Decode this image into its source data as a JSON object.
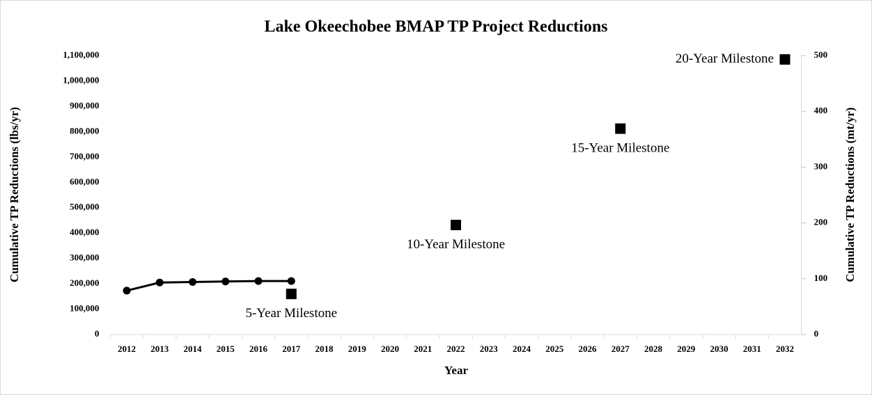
{
  "chart_data": {
    "type": "line",
    "title": "Lake Okeechobee BMAP TP Project Reductions",
    "x_label": "Year",
    "y_label": "Cumulative TP Reductions (lbs/yr)",
    "y2_label": "Cumulative TP Reductions (mt/yr)",
    "categories": [
      "2012",
      "2013",
      "2014",
      "2015",
      "2016",
      "2017",
      "2018",
      "2019",
      "2020",
      "2021",
      "2022",
      "2023",
      "2024",
      "2025",
      "2026",
      "2027",
      "2028",
      "2029",
      "2030",
      "2031",
      "2032"
    ],
    "series": [
      {
        "type": "line",
        "color": "#000000",
        "values": [
          173000,
          205000,
          207000,
          209000,
          211000,
          211000,
          null,
          null,
          null,
          null,
          null,
          null,
          null,
          null,
          null,
          null,
          null,
          null,
          null,
          null,
          null
        ]
      },
      {
        "type": "marker",
        "color": "#000000",
        "values": [
          null,
          null,
          null,
          null,
          null,
          160000,
          null,
          null,
          null,
          null,
          432000,
          null,
          null,
          null,
          null,
          812000,
          null,
          null,
          null,
          null,
          1085000
        ]
      }
    ],
    "annotations": [
      {
        "text": "5-Year Milestone",
        "category": "2017"
      },
      {
        "text": "10-Year Milestone",
        "category": "2022"
      },
      {
        "text": "15-Year Milestone",
        "category": "2027"
      },
      {
        "text": "20-Year Milestone",
        "category": "2032"
      }
    ],
    "ylim": [
      0,
      1100000
    ],
    "yticks": [
      0,
      {
        "value": 100000,
        "label": "100,000"
      },
      {
        "value": 200000,
        "label": "200,000"
      },
      {
        "value": 300000,
        "label": "300,000"
      },
      {
        "value": 400000,
        "label": "400,000"
      },
      {
        "value": 500000,
        "label": "500,000"
      },
      {
        "value": 600000,
        "label": "600,000"
      },
      {
        "value": 700000,
        "label": "700,000"
      },
      {
        "value": 800000,
        "label": "800,000"
      },
      {
        "value": 900000,
        "label": "900,000"
      },
      {
        "value": 1000000,
        "label": "1,000,000"
      },
      {
        "value": 1100000,
        "label": "1,100,000"
      }
    ],
    "y2lim": [
      0,
      500
    ],
    "y2ticks": [
      0,
      100,
      200,
      300,
      400,
      500
    ],
    "grid": false
  }
}
